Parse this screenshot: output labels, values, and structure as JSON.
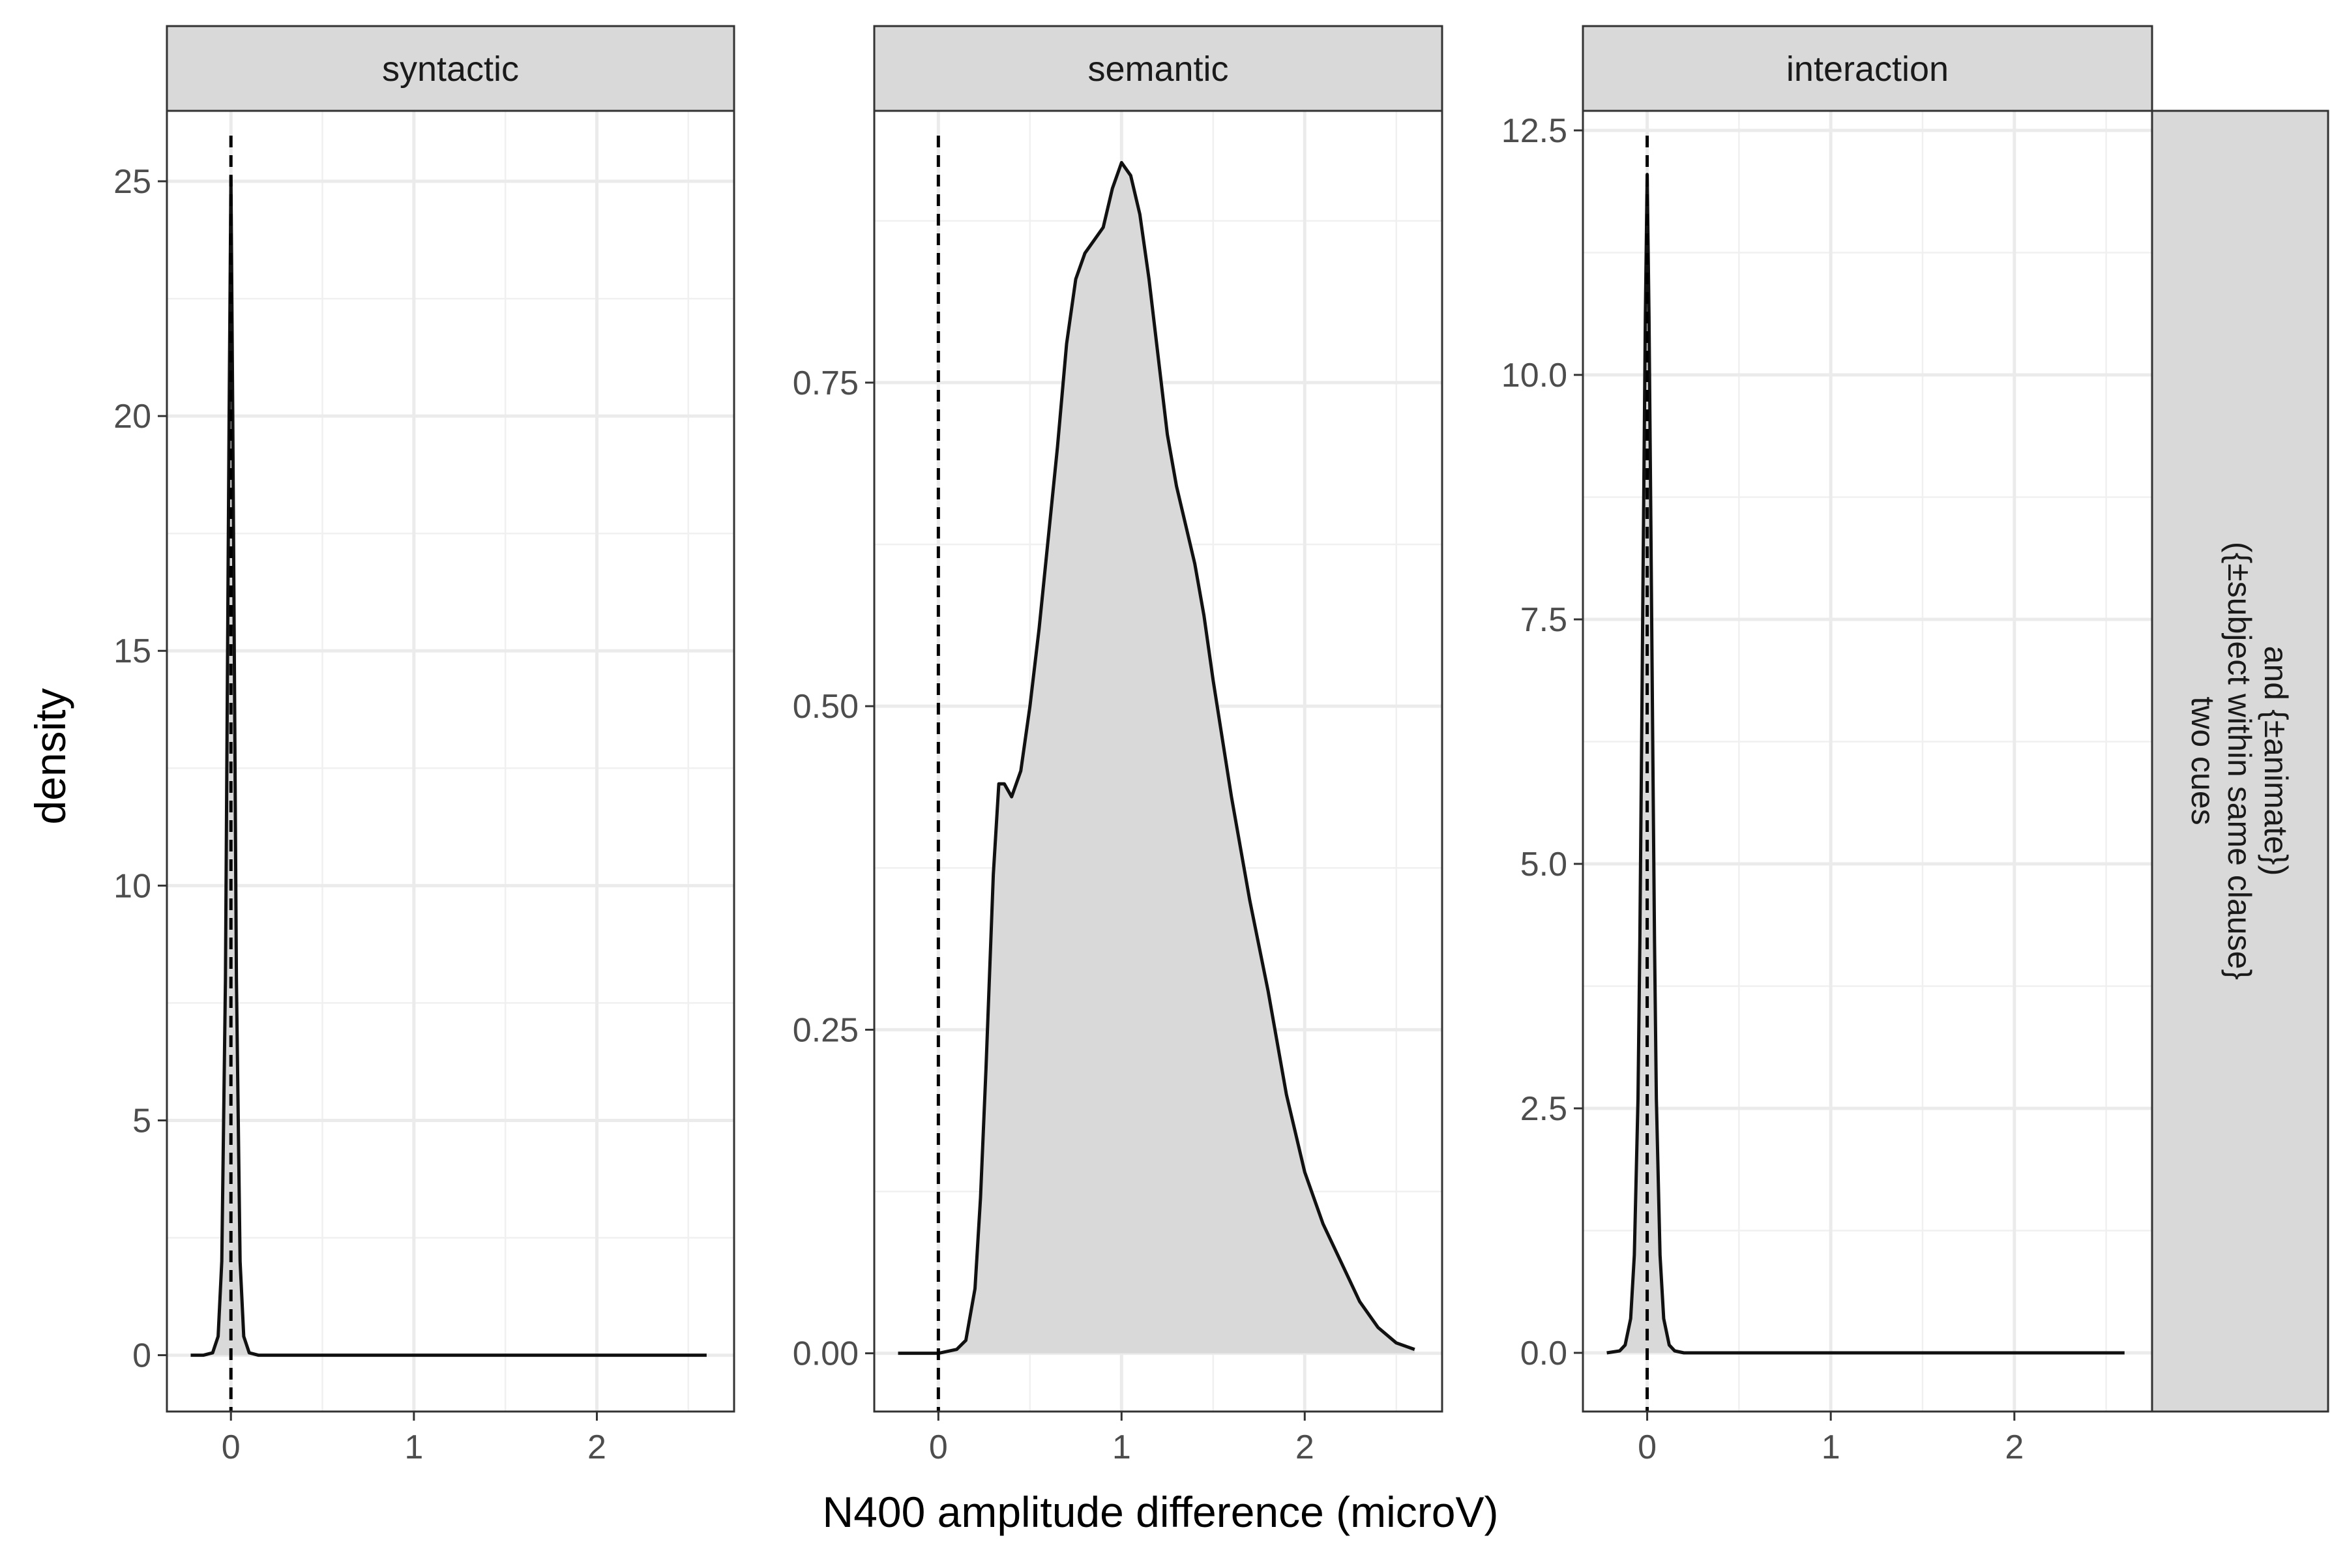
{
  "figure": {
    "xlabel": "N400 amplitude difference (microV)",
    "ylabel": "density",
    "row_strip": [
      "two cues",
      "({±subject within same clause}",
      "and {±animate})"
    ]
  },
  "chart_data": [
    {
      "type": "area",
      "facet": "syntactic",
      "x": [
        -0.22,
        -0.15,
        -0.1,
        -0.07,
        -0.05,
        -0.03,
        -0.02,
        -0.01,
        0.0,
        0.01,
        0.02,
        0.03,
        0.05,
        0.07,
        0.1,
        0.15,
        0.3,
        0.6,
        1.0,
        1.5,
        2.0,
        2.6
      ],
      "y": [
        0,
        0,
        0.05,
        0.4,
        2,
        8,
        14,
        20,
        25.1,
        20,
        14,
        8,
        2,
        0.4,
        0.05,
        0,
        0,
        0,
        0,
        0,
        0,
        0
      ],
      "xlim": [
        -0.35,
        2.75
      ],
      "ylim": [
        -1.2,
        26.5
      ],
      "xticks": [
        0,
        1,
        2
      ],
      "yticks": [
        0,
        5,
        10,
        15,
        20,
        25
      ],
      "ytick_labels": [
        "0",
        "5",
        "10",
        "15",
        "20",
        "25"
      ],
      "vline": 0,
      "grid": true,
      "fill": "#d9d9d9"
    },
    {
      "type": "area",
      "facet": "semantic",
      "x": [
        -0.22,
        0.0,
        0.1,
        0.15,
        0.2,
        0.23,
        0.26,
        0.3,
        0.33,
        0.36,
        0.4,
        0.45,
        0.5,
        0.55,
        0.6,
        0.65,
        0.7,
        0.75,
        0.8,
        0.85,
        0.9,
        0.95,
        1.0,
        1.05,
        1.1,
        1.15,
        1.2,
        1.25,
        1.3,
        1.35,
        1.4,
        1.45,
        1.5,
        1.6,
        1.7,
        1.8,
        1.9,
        2.0,
        2.1,
        2.2,
        2.3,
        2.4,
        2.5,
        2.6
      ],
      "y": [
        0,
        0,
        0.003,
        0.01,
        0.05,
        0.12,
        0.22,
        0.37,
        0.44,
        0.44,
        0.43,
        0.45,
        0.5,
        0.56,
        0.63,
        0.7,
        0.78,
        0.83,
        0.85,
        0.86,
        0.87,
        0.9,
        0.92,
        0.91,
        0.88,
        0.83,
        0.77,
        0.71,
        0.67,
        0.64,
        0.61,
        0.57,
        0.52,
        0.43,
        0.35,
        0.28,
        0.2,
        0.14,
        0.1,
        0.07,
        0.04,
        0.02,
        0.008,
        0.003
      ],
      "xlim": [
        -0.35,
        2.75
      ],
      "ylim": [
        -0.045,
        0.96
      ],
      "xticks": [
        0,
        1,
        2
      ],
      "yticks": [
        0,
        0.25,
        0.5,
        0.75
      ],
      "ytick_labels": [
        "0.00",
        "0.25",
        "0.50",
        "0.75"
      ],
      "vline": 0,
      "grid": true,
      "fill": "#d9d9d9"
    },
    {
      "type": "area",
      "facet": "interaction",
      "x": [
        -0.22,
        -0.15,
        -0.12,
        -0.09,
        -0.07,
        -0.05,
        -0.04,
        -0.03,
        -0.02,
        -0.01,
        0.0,
        0.01,
        0.02,
        0.03,
        0.04,
        0.05,
        0.07,
        0.09,
        0.12,
        0.15,
        0.2,
        0.3,
        0.6,
        1.0,
        1.5,
        2.0,
        2.6
      ],
      "y": [
        0,
        0.02,
        0.08,
        0.35,
        1.0,
        2.6,
        4.2,
        6.3,
        8.5,
        10.6,
        12.05,
        10.6,
        8.5,
        6.3,
        4.2,
        2.6,
        1.0,
        0.35,
        0.08,
        0.02,
        0,
        0,
        0,
        0,
        0,
        0,
        0
      ],
      "xlim": [
        -0.35,
        2.75
      ],
      "ylim": [
        -0.6,
        12.7
      ],
      "xticks": [
        0,
        1,
        2
      ],
      "yticks": [
        0,
        2.5,
        5,
        7.5,
        10,
        12.5
      ],
      "ytick_labels": [
        "0.0",
        "2.5",
        "5.0",
        "7.5",
        "10.0",
        "12.5"
      ],
      "vline": 0,
      "grid": true,
      "fill": "#d9d9d9"
    }
  ]
}
